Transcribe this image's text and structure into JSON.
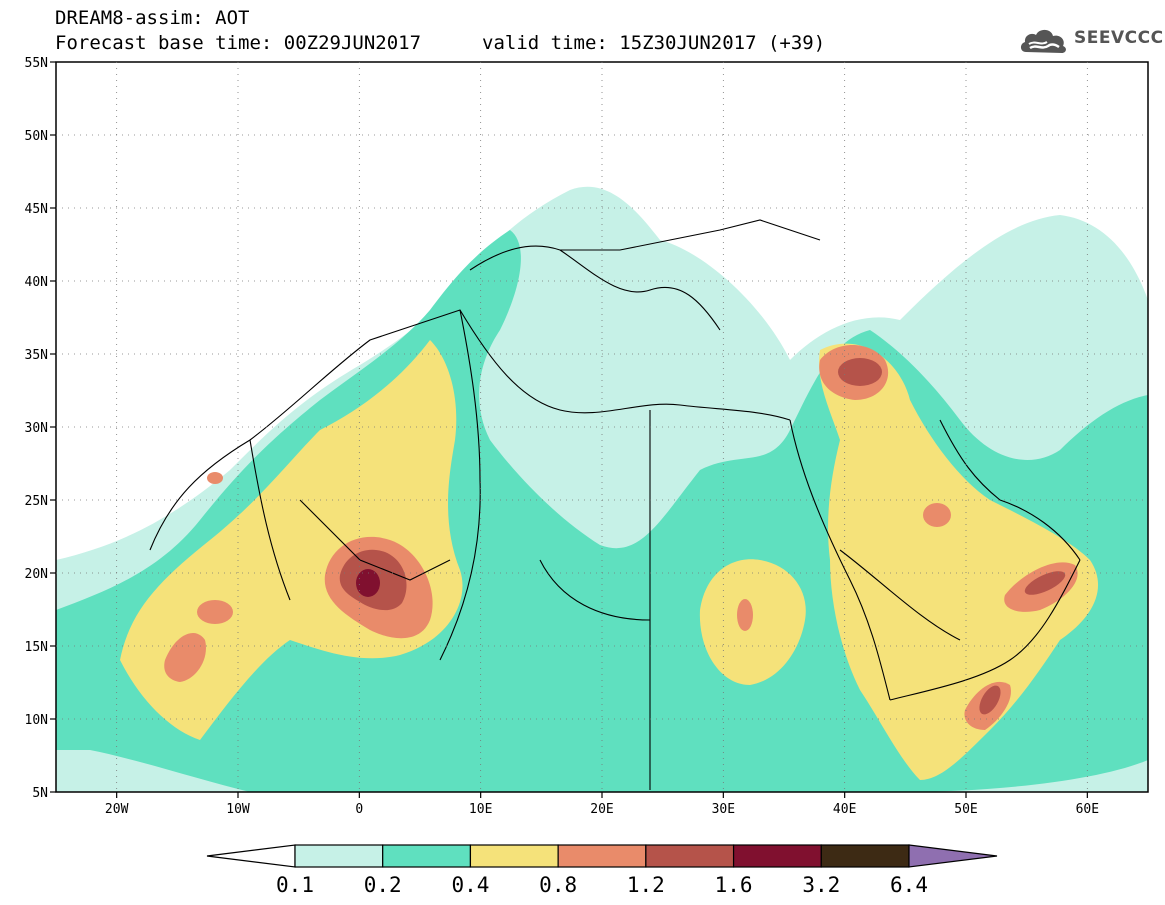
{
  "header": {
    "title": "DREAM8-assim: AOT",
    "base_time": "Forecast base time: 00Z29JUN2017",
    "valid_time": "valid time: 15Z30JUN2017 (+39)"
  },
  "logo": {
    "text": "SEEVCCC",
    "icon": "cloud-logo-icon"
  },
  "map": {
    "lon_range": [
      -25,
      65
    ],
    "lat_range": [
      5,
      55
    ],
    "lat_labels": [
      "5N",
      "10N",
      "15N",
      "20N",
      "25N",
      "30N",
      "35N",
      "40N",
      "45N",
      "50N",
      "55N"
    ],
    "lon_labels": [
      "20W",
      "10W",
      "0",
      "10E",
      "20E",
      "30E",
      "40E",
      "50E",
      "60E"
    ],
    "gridlines": "dotted"
  },
  "legend": {
    "labels": [
      "0.1",
      "0.2",
      "0.4",
      "0.8",
      "1.2",
      "1.6",
      "3.2",
      "6.4"
    ],
    "colors": [
      "#ffffff",
      "#c6f1e7",
      "#5fe0bf",
      "#f5e27a",
      "#e98b6a",
      "#b5534a",
      "#80102f",
      "#3d2a14",
      "#8f6fb0"
    ]
  }
}
